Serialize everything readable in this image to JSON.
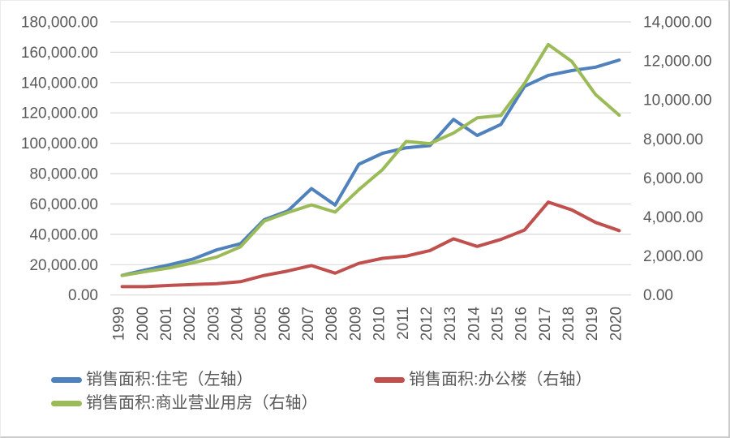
{
  "chart_data": {
    "type": "line",
    "title": "",
    "x": [
      "1999",
      "2000",
      "2001",
      "2002",
      "2003",
      "2004",
      "2005",
      "2006",
      "2007",
      "2008",
      "2009",
      "2010",
      "2011",
      "2012",
      "2013",
      "2014",
      "2015",
      "2016",
      "2017",
      "2018",
      "2019",
      "2020"
    ],
    "series": [
      {
        "name": "销售面积:住宅（左轴）",
        "axis": "left",
        "color": "#4F81BD",
        "values": [
          12998,
          16570,
          19939,
          23702,
          29779,
          33820,
          49588,
          55423,
          70136,
          59280,
          86185,
          93377,
          97030,
          98468,
          115723,
          105182,
          112406,
          137540,
          144789,
          147929,
          150144,
          154878
        ]
      },
      {
        "name": "销售面积:办公楼（右轴）",
        "axis": "right",
        "color": "#C0504D",
        "values": [
          430,
          430,
          490,
          540,
          580,
          680,
          1000,
          1230,
          1510,
          1120,
          1620,
          1880,
          1990,
          2280,
          2880,
          2490,
          2850,
          3330,
          4760,
          4360,
          3720,
          3300
        ]
      },
      {
        "name": "销售面积:商业营业用房（右轴）",
        "axis": "right",
        "color": "#9BBB59",
        "values": [
          1000,
          1200,
          1390,
          1650,
          1950,
          2470,
          3790,
          4230,
          4620,
          4250,
          5400,
          6430,
          7870,
          7760,
          8300,
          9080,
          9200,
          10850,
          12840,
          11970,
          10280,
          9220
        ]
      }
    ],
    "left_axis": {
      "min": 0,
      "max": 180000,
      "step": 20000,
      "tick_labels": [
        "0.00",
        "20,000.00",
        "40,000.00",
        "60,000.00",
        "80,000.00",
        "100,000.00",
        "120,000.00",
        "140,000.00",
        "160,000.00",
        "180,000.00"
      ]
    },
    "right_axis": {
      "min": 0,
      "max": 14000,
      "step": 2000,
      "tick_labels": [
        "0.00",
        "2,000.00",
        "4,000.00",
        "6,000.00",
        "8,000.00",
        "10,000.00",
        "12,000.00",
        "14,000.00"
      ]
    },
    "grid": true,
    "legend_position": "bottom",
    "xlabel": "",
    "ylabel": ""
  },
  "styles": {
    "grid_color": "#D9D9D9",
    "text_color": "#595959",
    "background": "#FFFFFF"
  }
}
